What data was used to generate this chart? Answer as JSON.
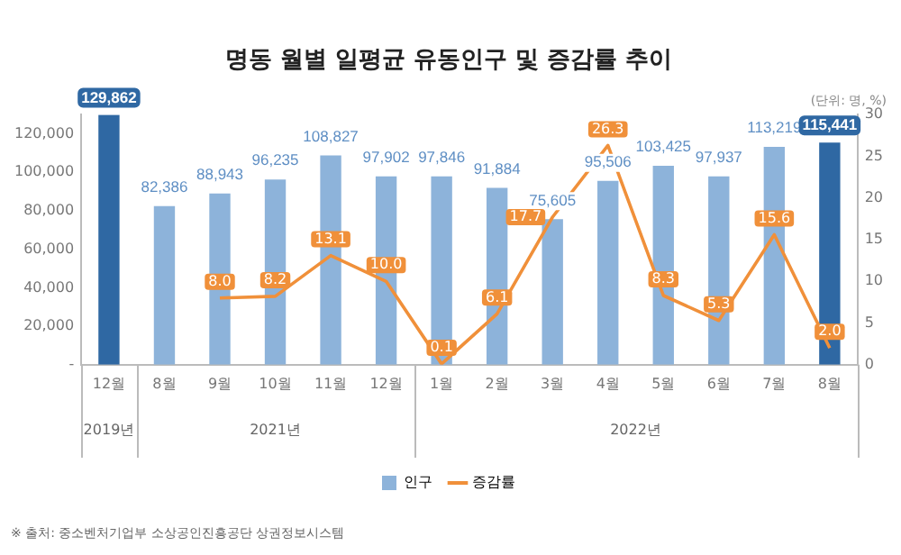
{
  "chart_data": {
    "type": "bar",
    "title": "명동 월별 일평균 유동인구 및 증감률 추이",
    "categories": [
      "12월",
      "8월",
      "9월",
      "10월",
      "11월",
      "12월",
      "1월",
      "2월",
      "3월",
      "4월",
      "5월",
      "6월",
      "7월",
      "8월"
    ],
    "series": [
      {
        "name": "인구",
        "type": "bar",
        "color": "#8db3da",
        "colors": [
          "#2f68a3",
          "#8db3da",
          "#8db3da",
          "#8db3da",
          "#8db3da",
          "#8db3da",
          "#8db3da",
          "#8db3da",
          "#8db3da",
          "#8db3da",
          "#8db3da",
          "#8db3da",
          "#8db3da",
          "#2f68a3"
        ],
        "values": [
          129862,
          82386,
          88943,
          96235,
          108827,
          97902,
          97846,
          91884,
          75605,
          95506,
          103425,
          97937,
          113219,
          115441
        ],
        "value_labels": [
          "129,862",
          "82,386",
          "88,943",
          "96,235",
          "108,827",
          "97,902",
          "97,846",
          "91,884",
          "75,605",
          "95,506",
          "103,425",
          "97,937",
          "113,219",
          "115,441"
        ]
      },
      {
        "name": "증감률",
        "type": "line",
        "axis": "y2",
        "color": "#f0903a",
        "values": [
          null,
          null,
          8.0,
          8.2,
          13.1,
          10.0,
          0.1,
          6.1,
          17.7,
          26.3,
          8.3,
          5.3,
          15.6,
          2.0
        ],
        "value_labels": [
          null,
          null,
          "8.0",
          "8.2",
          "13.1",
          "10.0",
          "0.1",
          "6.1",
          "17.7",
          "26.3",
          "8.3",
          "5.3",
          "15.6",
          "2.0"
        ]
      }
    ],
    "ylim": [
      0,
      130000
    ],
    "yticks": [
      {
        "value": 0,
        "label": "-"
      },
      {
        "value": 20000,
        "label": "20,000"
      },
      {
        "value": 40000,
        "label": "40,000"
      },
      {
        "value": 60000,
        "label": "60,000"
      },
      {
        "value": 80000,
        "label": "80,000"
      },
      {
        "value": 100000,
        "label": "100,000"
      },
      {
        "value": 120000,
        "label": "120,000"
      }
    ],
    "y2lim": [
      0,
      30
    ],
    "y2ticks": [
      0,
      5,
      10,
      15,
      20,
      25,
      30
    ],
    "grid": false,
    "legend": "bottom",
    "marker": "none",
    "line_style": "solid",
    "annotations": [
      "(단위: 명, %)",
      "2019년",
      "2021년",
      "2022년",
      "※ 출처: 중소벤처기업부 소상공인진흥공단 상권정보시스템"
    ]
  }
}
